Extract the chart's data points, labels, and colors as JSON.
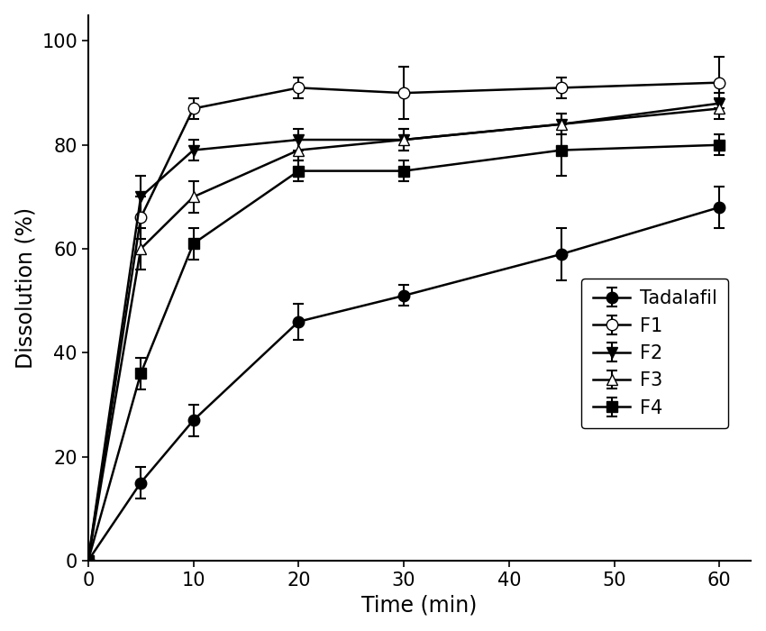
{
  "time_points": [
    0,
    5,
    10,
    20,
    30,
    45,
    60
  ],
  "series": {
    "Tadalafil": {
      "y": [
        0,
        15,
        27,
        46,
        51,
        59,
        68
      ],
      "yerr": [
        0,
        3,
        3,
        3.5,
        2,
        5,
        4
      ],
      "marker": "o",
      "mfc": "black",
      "mec": "black"
    },
    "F1": {
      "y": [
        0,
        66,
        87,
        91,
        90,
        91,
        92
      ],
      "yerr": [
        0,
        4,
        2,
        2,
        5,
        2,
        5
      ],
      "marker": "o",
      "mfc": "white",
      "mec": "black"
    },
    "F2": {
      "y": [
        0,
        70,
        79,
        81,
        81,
        84,
        88
      ],
      "yerr": [
        0,
        4,
        2,
        2,
        2,
        2,
        2
      ],
      "marker": "v",
      "mfc": "black",
      "mec": "black"
    },
    "F3": {
      "y": [
        0,
        60,
        70,
        79,
        81,
        84,
        87
      ],
      "yerr": [
        0,
        4,
        3,
        2,
        2,
        2,
        2
      ],
      "marker": "^",
      "mfc": "white",
      "mec": "black"
    },
    "F4": {
      "y": [
        0,
        36,
        61,
        75,
        75,
        79,
        80
      ],
      "yerr": [
        0,
        3,
        3,
        2,
        2,
        5,
        2
      ],
      "marker": "s",
      "mfc": "black",
      "mec": "black"
    }
  },
  "xlabel": "Time (min)",
  "ylabel": "Dissolution (%)",
  "xlim": [
    0,
    63
  ],
  "ylim": [
    0,
    105
  ],
  "xticks": [
    0,
    10,
    20,
    30,
    40,
    50,
    60
  ],
  "yticks": [
    0,
    20,
    40,
    60,
    80,
    100
  ],
  "legend_order": [
    "Tadalafil",
    "F1",
    "F2",
    "F3",
    "F4"
  ],
  "background_color": "#ffffff",
  "font_size": 15,
  "marker_size": 9,
  "line_width": 1.8,
  "capsize": 4,
  "elinewidth": 1.5,
  "capthick": 1.5
}
